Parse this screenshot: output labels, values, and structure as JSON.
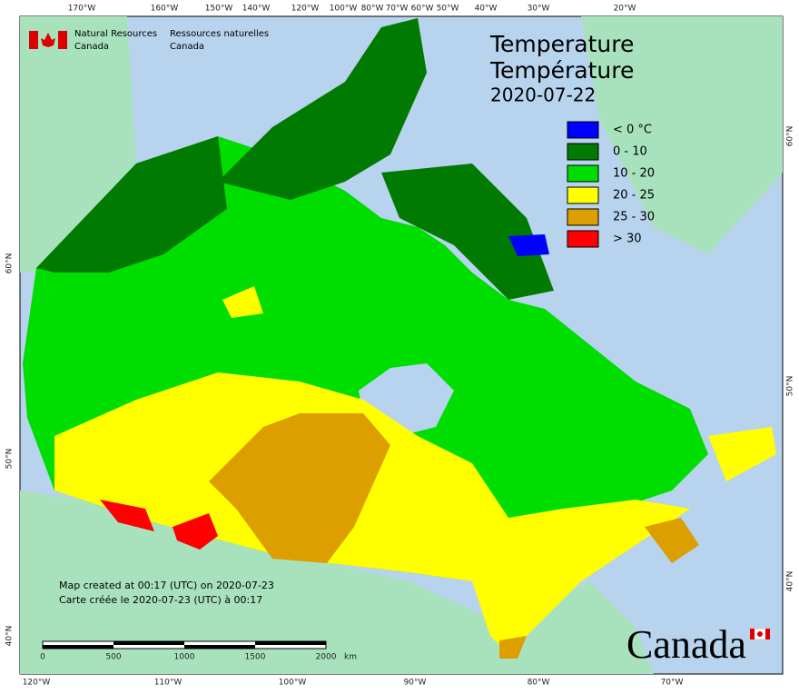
{
  "header": {
    "org_en": [
      "Natural Resources",
      "Canada"
    ],
    "org_fr": [
      "Ressources naturelles",
      "Canada"
    ]
  },
  "title": [
    "Temperature",
    "Température",
    "2020-07-22"
  ],
  "legend": [
    {
      "label": "< 0 °C",
      "color": "#0000ff"
    },
    {
      "label": "0 - 10",
      "color": "#007a00"
    },
    {
      "label": "10 - 20",
      "color": "#00dd00"
    },
    {
      "label": "20 - 25",
      "color": "#ffff00"
    },
    {
      "label": "25 - 30",
      "color": "#dd9f00"
    },
    {
      "label": "> 30",
      "color": "#ff0000"
    }
  ],
  "top_labels": [
    "170°W",
    "160°W",
    "150°W",
    "140°W",
    "120°W",
    "100°W",
    "80°W",
    "70°W",
    "60°W",
    "50°W",
    "40°W",
    "30°W",
    "20°W"
  ],
  "bottom_labels": [
    "120°W",
    "110°W",
    "100°W",
    "90°W",
    "80°W",
    "70°W"
  ],
  "left_labels": [
    "60°N",
    "50°N",
    "40°N"
  ],
  "right_labels": [
    "60°N",
    "50°N",
    "40°N"
  ],
  "notes": [
    "Map created at 00:17 (UTC) on 2020-07-23",
    "Carte créée le 2020-07-23 (UTC) à 00:17"
  ],
  "scale": {
    "ticks": [
      "0",
      "500",
      "1000",
      "1500",
      "2000"
    ],
    "unit": "km"
  },
  "wordmark": "Canada"
}
